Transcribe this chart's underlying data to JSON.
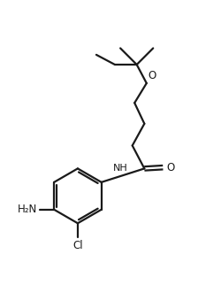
{
  "bg_color": "#ffffff",
  "line_color": "#1a1a1a",
  "line_width": 1.6,
  "fig_width": 2.5,
  "fig_height": 3.22,
  "dpi": 100,
  "xlim": [
    0,
    10
  ],
  "ylim": [
    0,
    12.88
  ]
}
